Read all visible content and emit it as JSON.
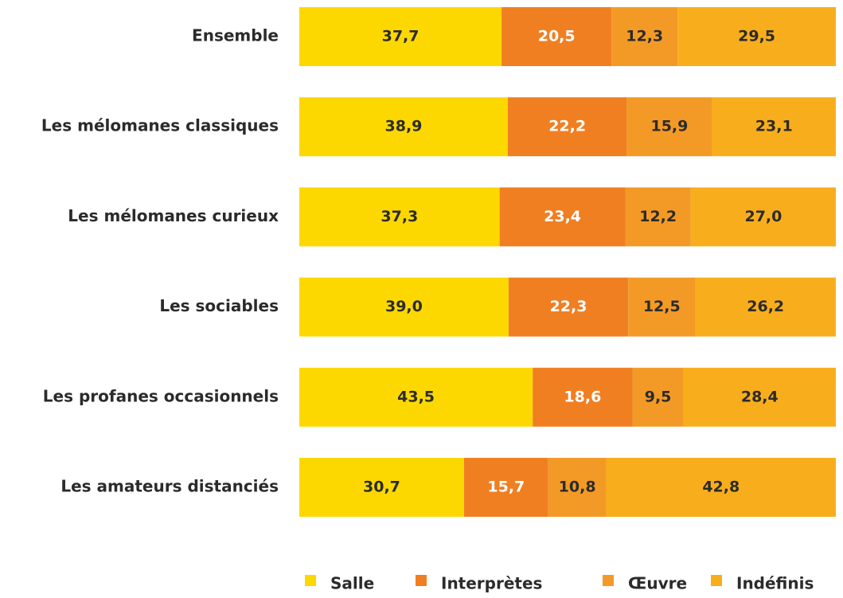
{
  "chart_data": {
    "type": "stacked-bar-horizontal",
    "categories": [
      "Ensemble",
      "Les mélomanes classiques",
      "Les mélomanes curieux",
      "Les sociables",
      "Les profanes occasionnels",
      "Les amateurs distanciés"
    ],
    "series": [
      {
        "name": "Salle",
        "color": "#fcd800",
        "label_color": "#2b2b2b",
        "values": [
          37.7,
          38.9,
          37.3,
          39.0,
          43.5,
          30.7
        ],
        "value_labels": [
          "37,7",
          "38,9",
          "37,3",
          "39,0",
          "43,5",
          "30,7"
        ]
      },
      {
        "name": "Interprètes",
        "color": "#f07f22",
        "label_color": "#ffffff",
        "values": [
          20.5,
          22.2,
          23.4,
          22.3,
          18.6,
          15.7
        ],
        "value_labels": [
          "20,5",
          "22,2",
          "23,4",
          "22,3",
          "18,6",
          "15,7"
        ]
      },
      {
        "name": "Œuvre",
        "color": "#f39a26",
        "label_color": "#2b2b2b",
        "values": [
          12.3,
          15.9,
          12.2,
          12.5,
          9.5,
          10.8
        ],
        "value_labels": [
          "12,3",
          "15,9",
          "12,2",
          "12,5",
          "9,5",
          "10,8"
        ]
      },
      {
        "name": "Indéfinis",
        "color": "#f8ae1c",
        "label_color": "#2b2b2b",
        "values": [
          29.5,
          23.1,
          27.0,
          26.2,
          28.4,
          42.8
        ],
        "value_labels": [
          "29,5",
          "23,1",
          "27,0",
          "26,2",
          "28,4",
          "42,8"
        ]
      }
    ],
    "legend": "bottom-right"
  }
}
